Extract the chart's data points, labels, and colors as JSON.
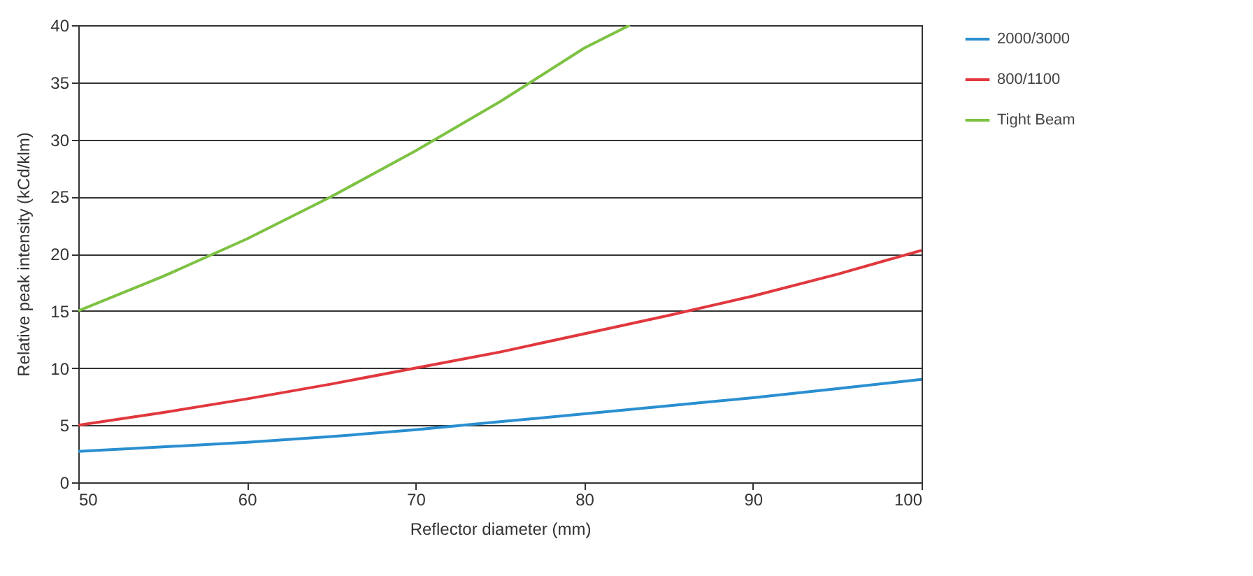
{
  "chart_data": {
    "type": "line",
    "xlabel": "Reflector diameter (mm)",
    "ylabel": "Relative peak intensity (kCd/klm)",
    "x": [
      50,
      55,
      60,
      65,
      70,
      75,
      80,
      85,
      90,
      95,
      100
    ],
    "series": [
      {
        "name": "2000/3000",
        "color": "#2a8fd0",
        "values": [
          2.7,
          3.1,
          3.5,
          4.0,
          4.6,
          5.3,
          6.0,
          6.7,
          7.4,
          8.2,
          9.0
        ]
      },
      {
        "name": "800/1100",
        "color": "#e0383e",
        "values": [
          5.0,
          6.1,
          7.3,
          8.6,
          10.0,
          11.4,
          13.0,
          14.6,
          16.3,
          18.2,
          20.3
        ]
      },
      {
        "name": "Tight Beam",
        "color": "#7dc242",
        "x": [
          50,
          55,
          60,
          65,
          70,
          75,
          80,
          82.7
        ],
        "values": [
          15.0,
          18.0,
          21.3,
          25.0,
          29.0,
          33.3,
          38.0,
          40.0
        ]
      }
    ],
    "xlim": [
      50,
      100
    ],
    "xticks": [
      50,
      60,
      70,
      80,
      90,
      100
    ],
    "ylim": [
      0,
      40
    ],
    "yticks": [
      0,
      5,
      10,
      15,
      20,
      25,
      30,
      35,
      40
    ],
    "grid": "y",
    "legend": "right",
    "line_style": "solid",
    "marker": "none"
  }
}
